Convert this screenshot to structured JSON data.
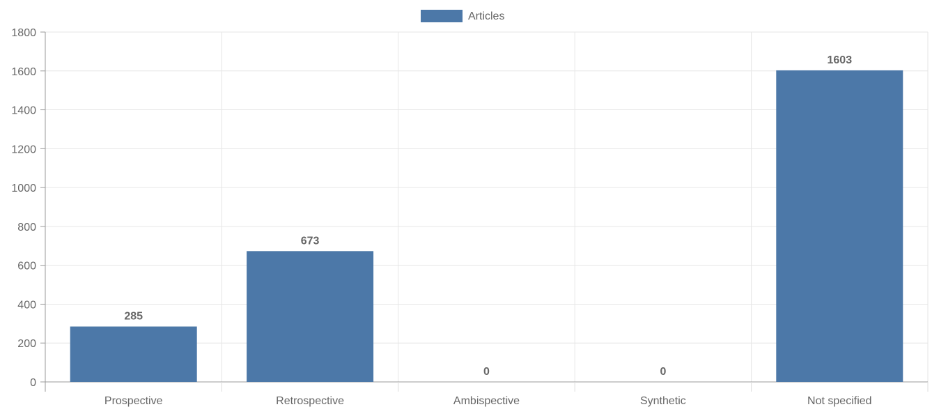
{
  "chart_data": {
    "type": "bar",
    "categories": [
      "Prospective",
      "Retrospective",
      "Ambispective",
      "Synthetic",
      "Not specified"
    ],
    "series": [
      {
        "name": "Articles",
        "values": [
          285,
          673,
          0,
          0,
          1603
        ],
        "color": "#4c78a8"
      }
    ],
    "ylim": [
      0,
      1800
    ],
    "yticks": [
      0,
      200,
      400,
      600,
      800,
      1000,
      1200,
      1400,
      1600,
      1800
    ],
    "grid": true,
    "legend_position": "top-center",
    "data_labels": true
  }
}
